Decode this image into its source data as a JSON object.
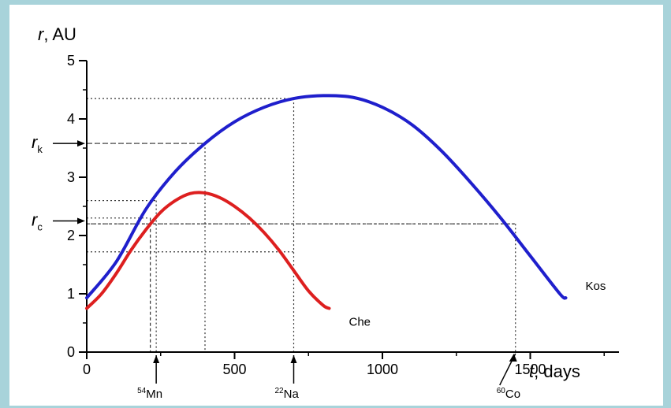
{
  "chart_data": {
    "type": "line",
    "ylabel_symbol": "r",
    "ylabel_unit": ", AU",
    "xlabel_symbol": "t",
    "xlabel_unit": ", days",
    "xlim": [
      0,
      1800
    ],
    "ylim": [
      0,
      5
    ],
    "x_ticks": [
      0,
      500,
      1000,
      1500
    ],
    "y_ticks": [
      0,
      1,
      2,
      3,
      4,
      5
    ],
    "series": [
      {
        "name": "Kos",
        "color": "#1f1fcc",
        "x": [
          0,
          100,
          200,
          300,
          400,
          500,
          600,
          700,
          800,
          900,
          1000,
          1100,
          1200,
          1300,
          1400,
          1500,
          1600,
          1620
        ],
        "y": [
          0.93,
          1.55,
          2.45,
          3.1,
          3.58,
          3.95,
          4.2,
          4.35,
          4.4,
          4.37,
          4.2,
          3.9,
          3.45,
          2.9,
          2.3,
          1.65,
          1.0,
          0.93
        ]
      },
      {
        "name": "Che",
        "color": "#dd1f1f",
        "x": [
          0,
          50,
          100,
          150,
          200,
          250,
          300,
          350,
          400,
          450,
          500,
          550,
          600,
          650,
          700,
          750,
          800,
          820
        ],
        "y": [
          0.75,
          1.0,
          1.35,
          1.75,
          2.1,
          2.4,
          2.6,
          2.72,
          2.73,
          2.65,
          2.5,
          2.3,
          2.05,
          1.75,
          1.4,
          1.05,
          0.8,
          0.75
        ]
      }
    ],
    "annotations": [
      {
        "label": "r",
        "sub": "k",
        "y": 3.58
      },
      {
        "label": "r",
        "sub": "c",
        "y": 2.25
      }
    ],
    "isotopes": [
      {
        "mass": "54",
        "symbol": "Mn",
        "x": 235
      },
      {
        "mass": "22",
        "symbol": "Na",
        "x": 700
      },
      {
        "mass": "60",
        "symbol": "Co",
        "x": 1450
      }
    ],
    "guides": [
      {
        "x": 235,
        "y": 2.6
      },
      {
        "x": 400,
        "y": 3.58
      },
      {
        "x": 700,
        "y": 4.35
      },
      {
        "x": 1450,
        "y": 2.2
      }
    ]
  }
}
